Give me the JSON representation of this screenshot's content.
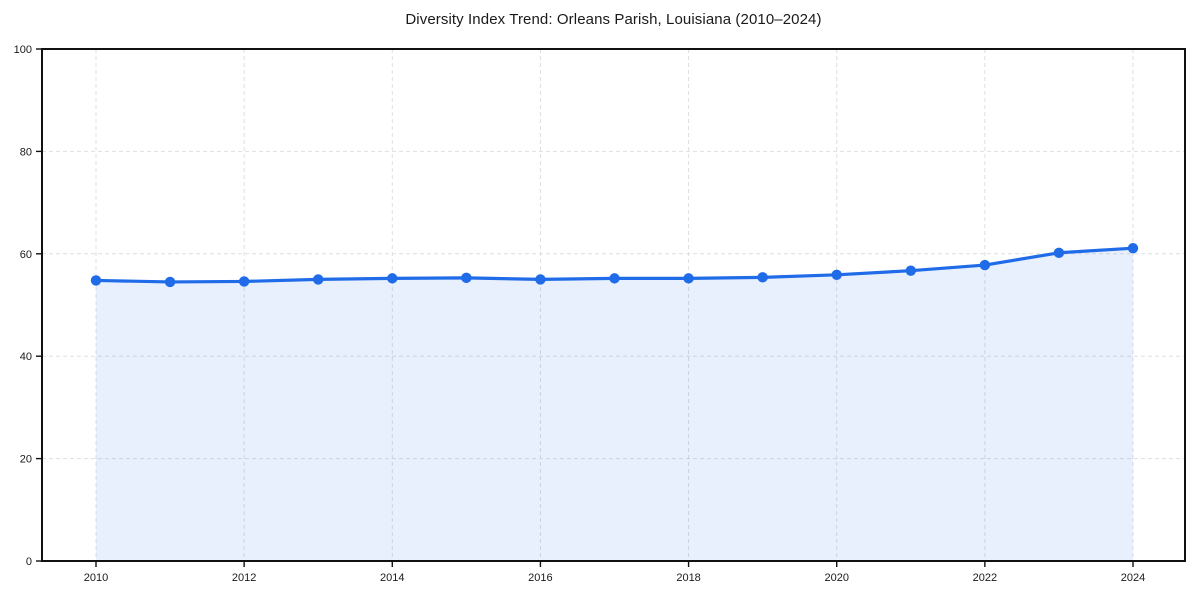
{
  "page": {
    "background_color": "#ffffff"
  },
  "chart_data": {
    "type": "area",
    "title": "Diversity Index Trend: Orleans Parish, Louisiana (2010–2024)",
    "xlabel": "",
    "ylabel": "",
    "x": [
      2010,
      2011,
      2012,
      2013,
      2014,
      2015,
      2016,
      2017,
      2018,
      2019,
      2020,
      2021,
      2022,
      2023,
      2024
    ],
    "series": [
      {
        "name": "Diversity Index",
        "values": [
          54.8,
          54.5,
          54.6,
          55.0,
          55.2,
          55.3,
          55.0,
          55.2,
          55.2,
          55.4,
          55.9,
          56.7,
          57.8,
          60.2,
          61.1
        ]
      }
    ],
    "xticks": [
      2010,
      2012,
      2014,
      2016,
      2018,
      2020,
      2022,
      2024
    ],
    "yticks": [
      0,
      20,
      40,
      60,
      80,
      100
    ],
    "ylim": [
      0,
      100
    ],
    "grid": true,
    "grid_style": "dashed",
    "legend": "none",
    "colors": {
      "line": "#1f6be8",
      "marker": "#1f6be8",
      "fill": "rgba(31,107,232,0.10)",
      "grid": "#dfdfdf",
      "axis_border": "#111111",
      "tick_labels": "#1a1a1a",
      "title": "#1a1a1a"
    }
  }
}
